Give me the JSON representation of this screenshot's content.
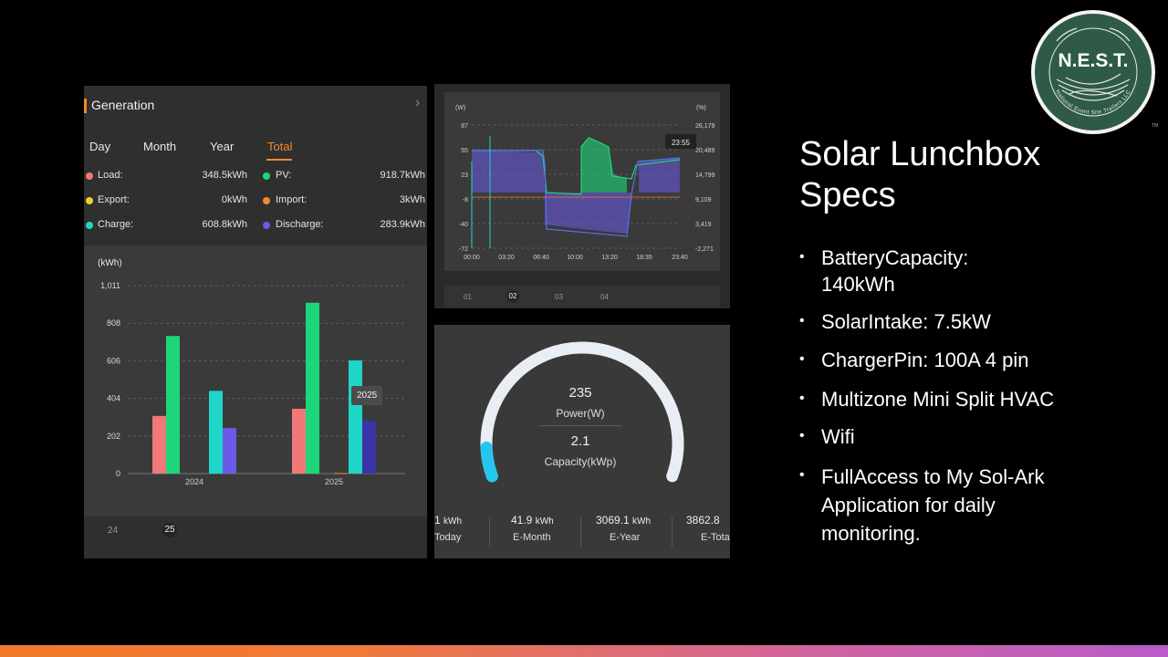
{
  "generation": {
    "title": "Generation",
    "tabs": [
      "Day",
      "Month",
      "Year",
      "Total"
    ],
    "active_tab": "Total",
    "legend": [
      {
        "label": "Load:",
        "value": "348.5kWh",
        "color": "#f07878"
      },
      {
        "label": "PV:",
        "value": "918.7kWh",
        "color": "#1ed67a"
      },
      {
        "label": "Export:",
        "value": "0kWh",
        "color": "#f2d22a"
      },
      {
        "label": "Import:",
        "value": "3kWh",
        "color": "#f08a2a"
      },
      {
        "label": "Charge:",
        "value": "608.8kWh",
        "color": "#20d6c8"
      },
      {
        "label": "Discharge:",
        "value": "283.9kWh",
        "color": "#6a5ae8"
      }
    ],
    "unit": "(kWh)",
    "tooltip": "2025",
    "bottom_years": [
      "24",
      "25"
    ]
  },
  "chart_data": [
    {
      "type": "bar",
      "categories": [
        "2024",
        "2025"
      ],
      "series": [
        {
          "name": "Load",
          "values": [
            310,
            348.5
          ],
          "color": "#f07878"
        },
        {
          "name": "PV",
          "values": [
            740,
            918.7
          ],
          "color": "#1ed67a"
        },
        {
          "name": "Export",
          "values": [
            0,
            0
          ],
          "color": "#f2d22a"
        },
        {
          "name": "Import",
          "values": [
            0,
            3
          ],
          "color": "#f08a2a"
        },
        {
          "name": "Charge",
          "values": [
            445,
            608.8
          ],
          "color": "#20d6c8"
        },
        {
          "name": "Discharge",
          "values": [
            245,
            283.9
          ],
          "color": "#6a5ae8"
        }
      ],
      "ylabel": "(kWh)",
      "yticks": [
        "0",
        "202",
        "404",
        "606",
        "808",
        "1,011"
      ],
      "ylim": [
        0,
        1011
      ]
    },
    {
      "type": "line",
      "left_unit": "(W)",
      "right_unit": "(%)",
      "left_ticks": [
        "87",
        "55",
        "23",
        "-8",
        "-40",
        "-72"
      ],
      "right_ticks": [
        "26,179",
        "20,489",
        "14,799",
        "9,109",
        "3,419",
        "-2,271"
      ],
      "x_ticks": [
        "00:00",
        "03:20",
        "06:40",
        "10:00",
        "13:20",
        "18:35",
        "23:40"
      ],
      "tooltip": "23:55",
      "day_tabs": [
        "01",
        "02",
        "03",
        "04"
      ],
      "active_day": "02"
    }
  ],
  "gauge": {
    "power_value": "235",
    "power_label": "Power(W)",
    "capacity_value": "2.1",
    "capacity_label": "Capacity(kWp)",
    "fill_fraction": 0.08,
    "stats": [
      {
        "value": "1",
        "unit": "kWh",
        "label": "Today"
      },
      {
        "value": "41.9",
        "unit": "kWh",
        "label": "E-Month"
      },
      {
        "value": "3069.1",
        "unit": "kWh",
        "label": "E-Year"
      },
      {
        "value": "3862.8",
        "unit": "",
        "label": "E-Tota"
      }
    ]
  },
  "specs": {
    "title": "Solar Lunchbox Specs",
    "items": [
      "BatteryCapacity: 140kWh",
      "SolarIntake: 7.5kW",
      "ChargerPin: 100A 4 pin",
      "Multizone Mini Split HVAC",
      "Wifi",
      "FullAccess to My Sol-Ark Application for daily monitoring."
    ]
  },
  "logo": {
    "name": "N.E.S.T.",
    "ring_text": "National Event Site Trailers LLC",
    "tm": "TM"
  }
}
